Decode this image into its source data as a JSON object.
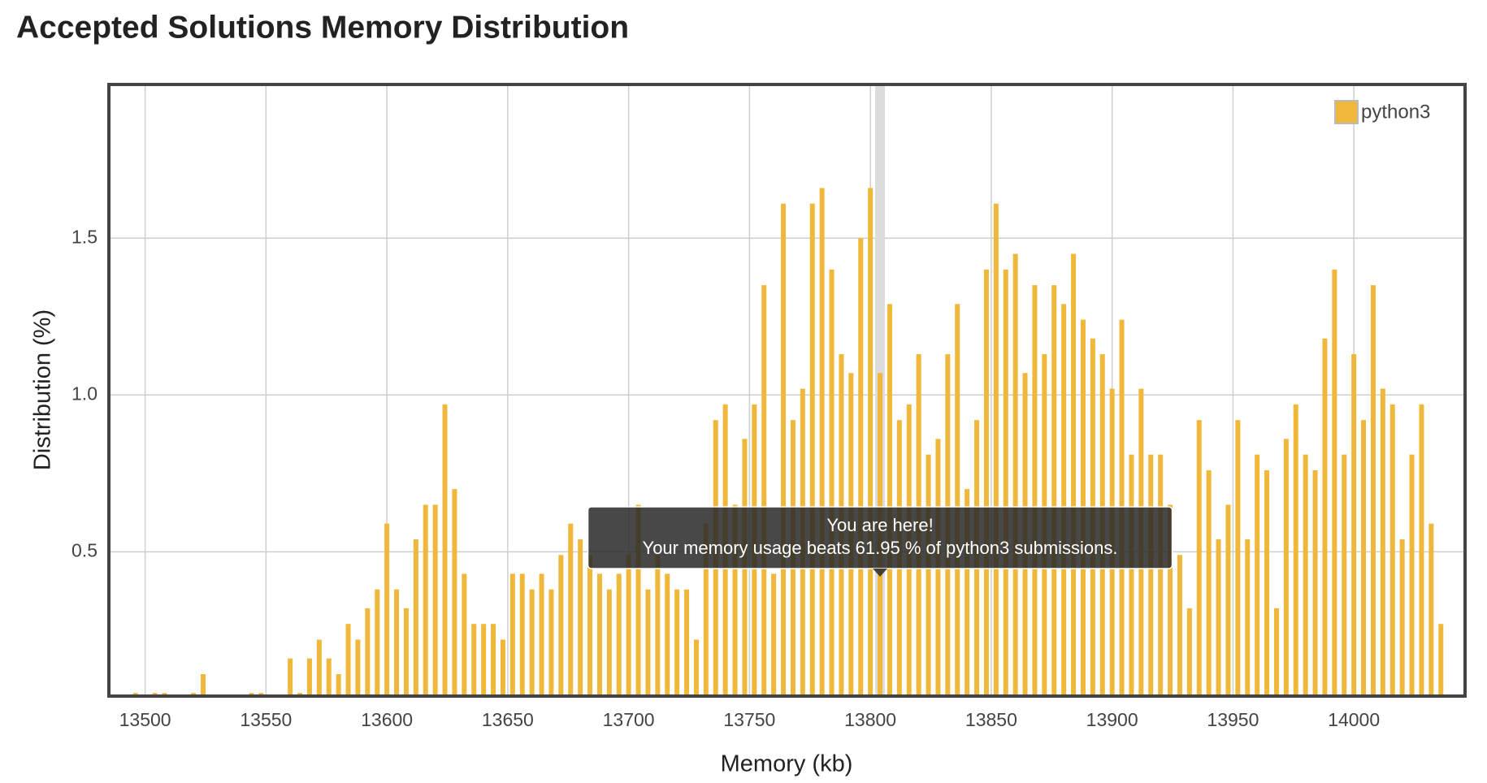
{
  "chart_data": {
    "type": "bar",
    "title": "Accepted Solutions Memory Distribution",
    "x_label": "Memory (kb)",
    "y_label": "Distribution (%)",
    "x": [
      13496,
      13504,
      13508,
      13520,
      13524,
      13544,
      13548,
      13560,
      13564,
      13568,
      13572,
      13576,
      13580,
      13584,
      13588,
      13592,
      13596,
      13600,
      13604,
      13608,
      13612,
      13616,
      13620,
      13624,
      13628,
      13632,
      13636,
      13640,
      13644,
      13648,
      13652,
      13656,
      13660,
      13664,
      13668,
      13672,
      13676,
      13680,
      13684,
      13688,
      13692,
      13696,
      13700,
      13704,
      13708,
      13712,
      13716,
      13720,
      13724,
      13728,
      13732,
      13736,
      13740,
      13744,
      13748,
      13752,
      13756,
      13760,
      13764,
      13768,
      13772,
      13776,
      13780,
      13784,
      13788,
      13792,
      13796,
      13800,
      13804,
      13808,
      13812,
      13816,
      13820,
      13824,
      13828,
      13832,
      13836,
      13840,
      13844,
      13848,
      13852,
      13856,
      13860,
      13864,
      13868,
      13872,
      13876,
      13880,
      13884,
      13888,
      13892,
      13896,
      13900,
      13904,
      13908,
      13912,
      13916,
      13920,
      13924,
      13928,
      13932,
      13936,
      13940,
      13944,
      13948,
      13952,
      13956,
      13960,
      13964,
      13968,
      13972,
      13976,
      13980,
      13984,
      13988,
      13992,
      13996,
      14000,
      14004,
      14008,
      14012,
      14016,
      14020,
      14024,
      14028,
      14032,
      14036
    ],
    "series": [
      {
        "name": "python3",
        "color": "#f0b83a",
        "values": [
          0.05,
          0.05,
          0.05,
          0.05,
          0.11,
          0.05,
          0.05,
          0.16,
          0.05,
          0.16,
          0.22,
          0.16,
          0.11,
          0.27,
          0.22,
          0.32,
          0.38,
          0.59,
          0.38,
          0.32,
          0.54,
          0.65,
          0.65,
          0.97,
          0.7,
          0.43,
          0.27,
          0.27,
          0.27,
          0.22,
          0.43,
          0.43,
          0.38,
          0.43,
          0.38,
          0.49,
          0.59,
          0.54,
          0.49,
          0.43,
          0.38,
          0.43,
          0.49,
          0.65,
          0.38,
          0.49,
          0.43,
          0.38,
          0.38,
          0.22,
          0.59,
          0.92,
          0.97,
          0.65,
          0.86,
          0.97,
          1.35,
          0.43,
          1.61,
          0.92,
          1.02,
          1.61,
          1.66,
          1.4,
          1.13,
          1.07,
          1.5,
          1.66,
          1.07,
          1.29,
          0.92,
          0.97,
          1.13,
          0.81,
          0.86,
          1.13,
          1.29,
          0.7,
          0.92,
          1.4,
          1.61,
          1.4,
          1.45,
          1.07,
          1.35,
          1.13,
          1.35,
          1.29,
          1.45,
          1.24,
          1.18,
          1.13,
          1.02,
          1.24,
          0.81,
          1.02,
          0.81,
          0.81,
          0.65,
          0.49,
          0.32,
          0.92,
          0.76,
          0.54,
          0.65,
          0.92,
          0.54,
          0.81,
          0.76,
          0.32,
          0.86,
          0.97,
          0.81,
          0.76,
          1.18,
          1.4,
          0.81,
          1.13,
          0.92,
          1.35,
          1.02,
          0.97,
          0.54,
          0.81,
          0.97,
          0.59,
          0.27
        ]
      }
    ],
    "xlim": [
      13485,
      14046
    ],
    "ylim": [
      0.04,
      1.99
    ],
    "xticks": [
      13500,
      13550,
      13600,
      13650,
      13700,
      13750,
      13800,
      13850,
      13900,
      13950,
      14000
    ],
    "yticks": [
      0.5,
      {
        "value": 1,
        "label": "1.0"
      },
      1.5
    ],
    "grid": true,
    "legend": "top-right",
    "highlight_x": 13804,
    "tooltip": {
      "title": "You are here!",
      "text": "Your memory usage beats 61.95 % of python3 submissions."
    }
  }
}
